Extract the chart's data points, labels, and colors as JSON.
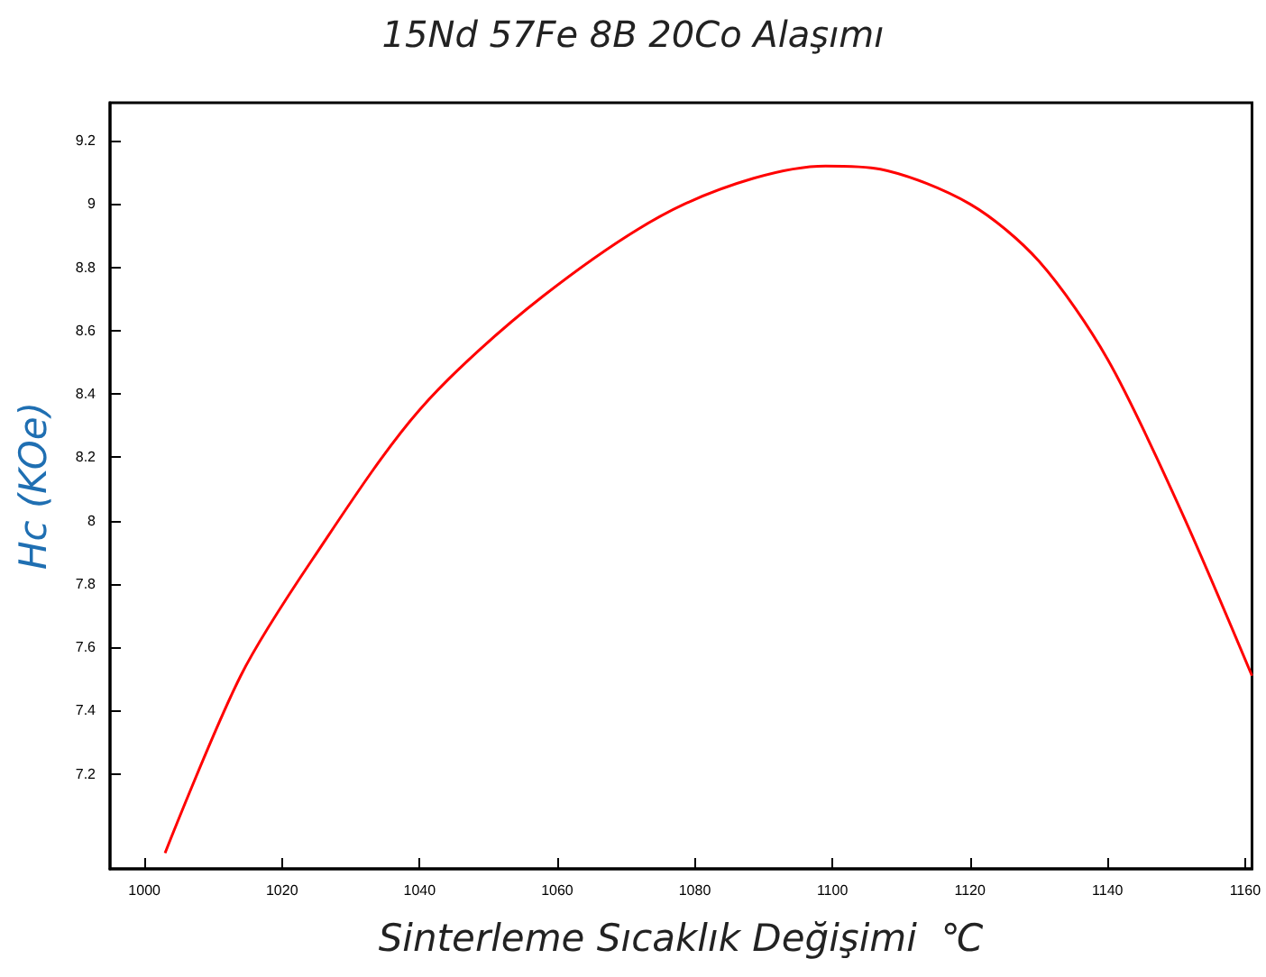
{
  "chart_data": {
    "type": "line",
    "title": "15Nd 57Fe 8B 20Co Alaşımı",
    "xlabel": "Sinterleme Sıcaklık Değişimi  ℃",
    "ylabel": "Hc (KOe)",
    "x": [
      1003,
      1014,
      1024.5,
      1040,
      1058,
      1078.5,
      1099,
      1107,
      1120,
      1130,
      1140,
      1150.5,
      1161
    ],
    "series": [
      {
        "color": "#ff0000",
        "values": [
          6.95,
          7.51,
          7.88,
          8.35,
          8.71,
          9.0,
          9.12,
          9.11,
          9.0,
          8.82,
          8.51,
          8.04,
          7.51
        ]
      }
    ],
    "xlim": [
      995,
      1161
    ],
    "xticks": [
      1000,
      1020,
      1040,
      1060,
      1080,
      1100,
      1120,
      1140,
      1160
    ],
    "ylim": [
      6.9,
      9.32
    ],
    "yticks": [
      7.2,
      7.4,
      7.6,
      7.8,
      8,
      8.2,
      8.4,
      8.6,
      8.8,
      9,
      9.2
    ],
    "grid": false,
    "marker": "none",
    "line_style": "solid"
  }
}
